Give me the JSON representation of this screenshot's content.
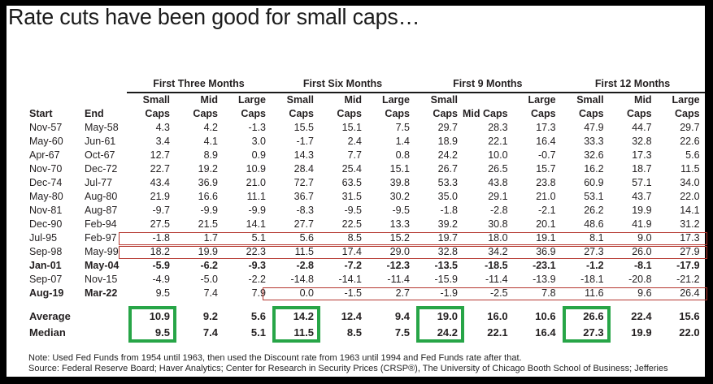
{
  "chart_data": {
    "type": "table",
    "title": "Rate cuts have been good for small caps…",
    "group_headers": [
      "First Three Months",
      "First Six Months",
      "First 9 Months",
      "First 12 Months"
    ],
    "sub_header_top": [
      "Small",
      "Mid",
      "Large",
      "Small",
      "Mid",
      "Large",
      "Small",
      "",
      "Large",
      "Small",
      "Mid",
      "Large"
    ],
    "sub_header_bottom": [
      "Caps",
      "Caps",
      "Caps",
      "Caps",
      "Caps",
      "Caps",
      "Caps",
      "Mid Caps",
      "Caps",
      "Caps",
      "Caps",
      "Caps"
    ],
    "start_header": "Start",
    "end_header": "End",
    "rows": [
      {
        "start": "Nov-57",
        "end": "May-58",
        "emphasis": "none",
        "values": [
          "4.3",
          "4.2",
          "-1.3",
          "15.5",
          "15.1",
          "7.5",
          "29.7",
          "28.3",
          "17.3",
          "47.9",
          "44.7",
          "29.7"
        ]
      },
      {
        "start": "May-60",
        "end": "Jun-61",
        "emphasis": "none",
        "values": [
          "3.4",
          "4.1",
          "3.0",
          "-1.7",
          "2.4",
          "1.4",
          "18.9",
          "22.1",
          "16.4",
          "33.3",
          "32.8",
          "22.6"
        ]
      },
      {
        "start": "Apr-67",
        "end": "Oct-67",
        "emphasis": "none",
        "values": [
          "12.7",
          "8.9",
          "0.9",
          "14.3",
          "7.7",
          "0.8",
          "24.2",
          "10.0",
          "-0.7",
          "32.6",
          "17.3",
          "5.6"
        ]
      },
      {
        "start": "Nov-70",
        "end": "Dec-72",
        "emphasis": "none",
        "values": [
          "22.7",
          "19.2",
          "10.9",
          "28.4",
          "25.4",
          "15.1",
          "26.7",
          "26.5",
          "15.7",
          "16.2",
          "18.7",
          "11.5"
        ]
      },
      {
        "start": "Dec-74",
        "end": "Jul-77",
        "emphasis": "none",
        "values": [
          "43.4",
          "36.9",
          "21.0",
          "72.7",
          "63.5",
          "39.8",
          "53.3",
          "43.8",
          "23.8",
          "60.9",
          "57.1",
          "34.0"
        ]
      },
      {
        "start": "May-80",
        "end": "Aug-80",
        "emphasis": "none",
        "values": [
          "21.9",
          "16.6",
          "11.1",
          "36.7",
          "31.5",
          "30.2",
          "35.0",
          "29.1",
          "21.0",
          "53.1",
          "43.7",
          "22.0"
        ]
      },
      {
        "start": "Nov-81",
        "end": "Aug-87",
        "emphasis": "none",
        "values": [
          "-9.7",
          "-9.9",
          "-9.9",
          "-8.3",
          "-9.5",
          "-9.5",
          "-1.8",
          "-2.8",
          "-2.1",
          "26.2",
          "19.9",
          "14.1"
        ]
      },
      {
        "start": "Dec-90",
        "end": "Feb-94",
        "emphasis": "none",
        "values": [
          "27.5",
          "21.5",
          "14.1",
          "27.7",
          "22.5",
          "13.3",
          "39.2",
          "30.8",
          "20.1",
          "48.6",
          "41.9",
          "31.2"
        ]
      },
      {
        "start": "Jul-95",
        "end": "Feb-97",
        "emphasis": "none",
        "values": [
          "-1.8",
          "1.7",
          "5.1",
          "5.6",
          "8.5",
          "15.2",
          "19.7",
          "18.0",
          "19.1",
          "8.1",
          "9.0",
          "17.3"
        ]
      },
      {
        "start": "Sep-98",
        "end": "May-99",
        "emphasis": "none",
        "values": [
          "18.2",
          "19.9",
          "22.3",
          "11.5",
          "17.4",
          "29.0",
          "32.8",
          "34.2",
          "36.9",
          "27.3",
          "26.0",
          "27.9"
        ]
      },
      {
        "start": "Jan-01",
        "end": "May-04",
        "emphasis": "row",
        "values": [
          "-5.9",
          "-6.2",
          "-9.3",
          "-2.8",
          "-7.2",
          "-12.3",
          "-13.5",
          "-18.5",
          "-23.1",
          "-1.2",
          "-8.1",
          "-17.9"
        ]
      },
      {
        "start": "Sep-07",
        "end": "Nov-15",
        "emphasis": "none",
        "values": [
          "-4.9",
          "-5.0",
          "-2.2",
          "-14.8",
          "-14.1",
          "-11.4",
          "-15.9",
          "-11.4",
          "-13.9",
          "-18.1",
          "-20.8",
          "-21.2"
        ]
      },
      {
        "start": "Aug-19",
        "end": "Mar-22",
        "emphasis": "label",
        "values": [
          "9.5",
          "7.4",
          "7.9",
          "0.0",
          "-1.5",
          "2.7",
          "-1.9",
          "-2.5",
          "7.8",
          "11.6",
          "9.6",
          "26.4"
        ]
      }
    ],
    "summary_rows": [
      {
        "label": "Average",
        "values": [
          "10.9",
          "9.2",
          "5.6",
          "14.2",
          "12.4",
          "9.4",
          "19.0",
          "16.0",
          "10.6",
          "26.6",
          "22.4",
          "15.6"
        ]
      },
      {
        "label": "Median",
        "values": [
          "9.5",
          "7.4",
          "5.1",
          "11.5",
          "8.5",
          "7.5",
          "24.2",
          "22.1",
          "16.4",
          "27.3",
          "19.9",
          "22.0"
        ]
      }
    ],
    "highlights": {
      "red_color": "#b5372f",
      "green_color": "#27a547",
      "red_boxes": [
        {
          "row_index": 8,
          "col_start": 0,
          "col_end": 11
        },
        {
          "row_index": 9,
          "col_start": 0,
          "col_end": 11
        },
        {
          "row_index": 12,
          "col_start": 3,
          "col_end": 11
        }
      ],
      "green_box_columns": [
        0,
        3,
        6,
        9
      ]
    },
    "note": "Note: Used Fed Funds from 1954 until 1963, then used the Discount rate from 1963 until 1994 and Fed Funds rate after that.",
    "source": "Source: Federal Reserve Board; Haver Analytics; Center for Research in Security Prices (CRSP®), The University of Chicago Booth School of Business; Jefferies"
  }
}
